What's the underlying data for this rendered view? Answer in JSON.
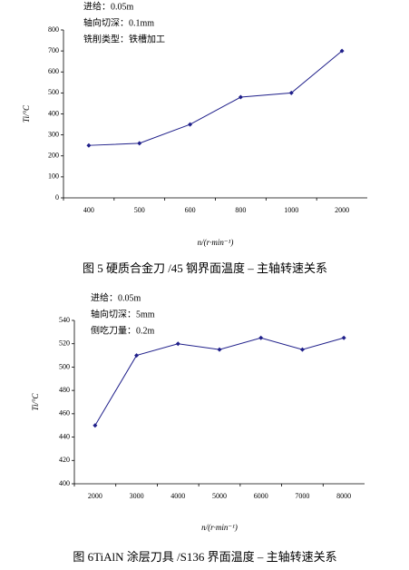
{
  "chart_data": [
    {
      "type": "line",
      "annotations": [
        "进给：0.05m",
        "轴向切深：0.1mm",
        "铣削类型：铁槽加工"
      ],
      "y_label": "Ti/°C",
      "x_label": "n/(r·min⁻¹)",
      "caption": "图 5 硬质合金刀 /45 钢界面温度 – 主轴转速关系",
      "categories": [
        "400",
        "500",
        "600",
        "800",
        "1000",
        "2000"
      ],
      "values": [
        250,
        260,
        350,
        480,
        500,
        700
      ],
      "color": "#1f1f8a",
      "ylim": [
        0,
        800
      ],
      "yticks": [
        0,
        100,
        200,
        300,
        400,
        500,
        600,
        700,
        800
      ]
    },
    {
      "type": "line",
      "annotations": [
        "进给：0.05m",
        "轴向切深：5mm",
        "侧吃刀量：0.2m"
      ],
      "y_label": "Ti/°C",
      "x_label": "n/(r·min⁻¹)",
      "caption": "图 6TiAlN 涂层刀具 /S136 界面温度 – 主轴转速关系",
      "categories": [
        "2000",
        "3000",
        "4000",
        "5000",
        "6000",
        "7000",
        "8000"
      ],
      "values": [
        450,
        510,
        520,
        515,
        525,
        515,
        525
      ],
      "color": "#1f1f8a",
      "ylim": [
        400,
        540
      ],
      "yticks": [
        400,
        420,
        440,
        460,
        480,
        500,
        520,
        540
      ]
    }
  ]
}
